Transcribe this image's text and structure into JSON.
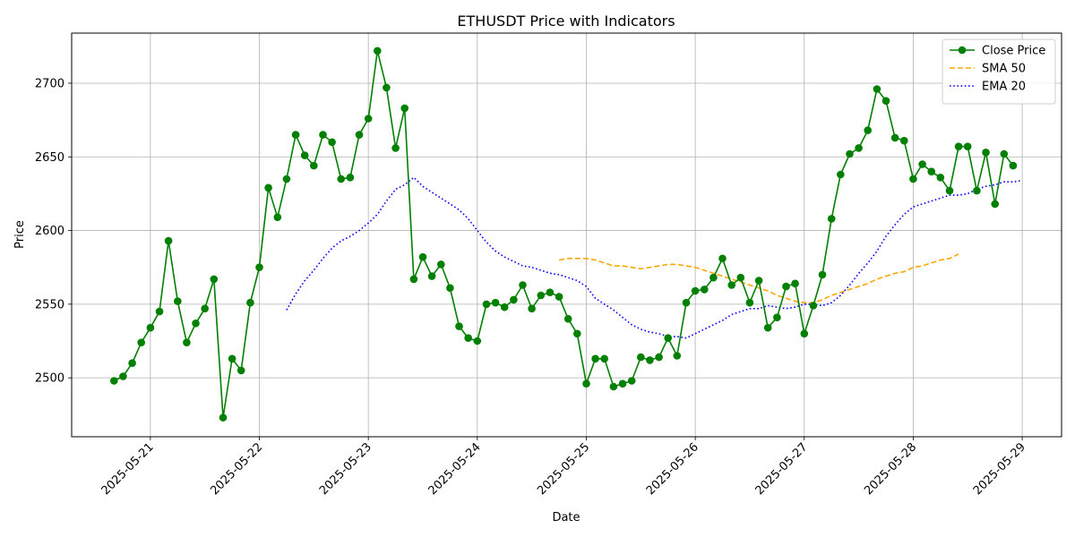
{
  "chart_data": {
    "type": "line",
    "title": "ETHUSDT Price with Indicators",
    "xlabel": "Date",
    "ylabel": "Price",
    "x_start": "2025-05-20 16:00",
    "x_step_hours": 2,
    "xlim": [
      "2025-05-20 06:40",
      "2025-05-29 08:40"
    ],
    "ylim": [
      2460,
      2734
    ],
    "grid": true,
    "legend_position": "upper right",
    "x_ticks": [
      "2025-05-21",
      "2025-05-22",
      "2025-05-23",
      "2025-05-24",
      "2025-05-25",
      "2025-05-26",
      "2025-05-27",
      "2025-05-28",
      "2025-05-29"
    ],
    "y_ticks": [
      2500,
      2550,
      2600,
      2650,
      2700
    ],
    "series": [
      {
        "name": "Close Price",
        "color": "#008000",
        "style": "solid-marker",
        "offset": 0,
        "values": [
          2498,
          2501,
          2510,
          2524,
          2534,
          2545,
          2593,
          2552,
          2524,
          2537,
          2547,
          2567,
          2473,
          2513,
          2505,
          2551,
          2575,
          2629,
          2609,
          2635,
          2665,
          2651,
          2644,
          2665,
          2660,
          2635,
          2636,
          2665,
          2676,
          2722,
          2697,
          2656,
          2683,
          2567,
          2582,
          2569,
          2577,
          2561,
          2535,
          2527,
          2525,
          2550,
          2551,
          2548,
          2553,
          2563,
          2547,
          2556,
          2558,
          2555,
          2540,
          2530,
          2496,
          2513,
          2513,
          2494,
          2496,
          2498,
          2514,
          2512,
          2514,
          2527,
          2515,
          2551,
          2559,
          2560,
          2568,
          2581,
          2563,
          2568,
          2551,
          2566,
          2534,
          2541,
          2562,
          2564,
          2530,
          2549,
          2570,
          2608,
          2638,
          2652,
          2656,
          2668,
          2696,
          2688,
          2663,
          2661,
          2635,
          2645,
          2640,
          2636,
          2627,
          2657,
          2657,
          2627,
          2653,
          2618,
          2652,
          2644
        ]
      },
      {
        "name": "SMA 50",
        "color": "#ffa500",
        "style": "dashed",
        "offset": 49,
        "values": [
          2580,
          2581,
          2581,
          2581,
          2580,
          2578,
          2576,
          2576,
          2575,
          2574,
          2575,
          2576,
          2577,
          2577,
          2576,
          2575,
          2573,
          2571,
          2569,
          2567,
          2565,
          2563,
          2561,
          2559,
          2556,
          2554,
          2552,
          2551,
          2551,
          2553,
          2556,
          2558,
          2560,
          2562,
          2564,
          2567,
          2569,
          2571,
          2572,
          2575,
          2576,
          2578,
          2580,
          2581,
          2584
        ]
      },
      {
        "name": "EMA 20",
        "color": "#0000ff",
        "style": "dotted",
        "offset": 19,
        "values": [
          2546,
          2557,
          2566,
          2573,
          2581,
          2588,
          2593,
          2596,
          2600,
          2605,
          2611,
          2620,
          2628,
          2631,
          2636,
          2630,
          2626,
          2622,
          2618,
          2614,
          2608,
          2600,
          2592,
          2586,
          2582,
          2579,
          2576,
          2575,
          2573,
          2571,
          2570,
          2568,
          2566,
          2562,
          2554,
          2550,
          2546,
          2541,
          2536,
          2533,
          2531,
          2530,
          2528,
          2528,
          2527,
          2530,
          2533,
          2536,
          2539,
          2543,
          2545,
          2547,
          2547,
          2549,
          2548,
          2547,
          2548,
          2550,
          2550,
          2549,
          2551,
          2556,
          2563,
          2571,
          2578,
          2586,
          2596,
          2604,
          2611,
          2616,
          2618,
          2620,
          2622,
          2624,
          2624,
          2625,
          2628,
          2630,
          2631,
          2633,
          2633,
          2634
        ]
      }
    ]
  }
}
